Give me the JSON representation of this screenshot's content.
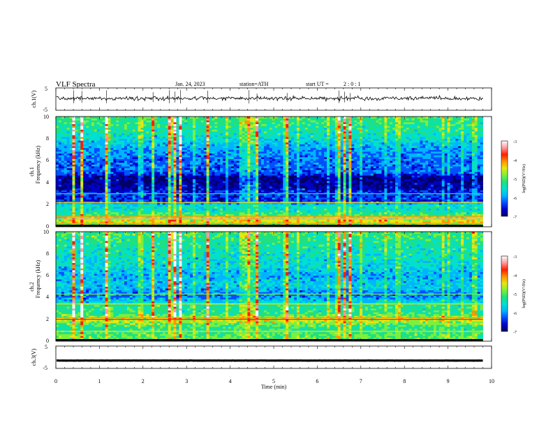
{
  "header": {
    "title": "VLF Spectra",
    "date": "Jan. 24, 2023",
    "station": "station=ATH",
    "start_ut_label": "start UT =",
    "start_ut_value": "2 : 0 : 1"
  },
  "colormap": [
    "#000066",
    "#0000c8",
    "#0050ff",
    "#00b4ff",
    "#00e0d0",
    "#20e080",
    "#7cf03c",
    "#e6e614",
    "#ff9600",
    "#ff1e00",
    "#ff9a9a",
    "#ffffff"
  ],
  "chart_data": [
    {
      "type": "line",
      "panel": "ch1-waveform",
      "ylabel": "ch.1(V)",
      "ylim": [
        -5,
        5
      ],
      "yticks": [
        "5",
        "-5"
      ],
      "xlim": [
        0,
        10
      ],
      "baseline_v": 0.3,
      "noise_amplitude_v": 1.0,
      "spike_amplitude_v": 4.0
    },
    {
      "type": "heatmap",
      "panel": "ch1-spectrogram",
      "ylabel": [
        "ch.1",
        "Frequency (kHz)"
      ],
      "ylim": [
        0,
        10
      ],
      "yticks": [
        "0",
        "2",
        "4",
        "6",
        "8",
        "10"
      ],
      "xlim": [
        0,
        9.8
      ],
      "colorbar": {
        "label": "log(PSD)(V²/Hz)",
        "range": [
          -7,
          -3
        ],
        "ticks": [
          "-3",
          "-4",
          "-5",
          "-6",
          "-7"
        ]
      },
      "frequency_profile_logpsd": [
        {
          "f": 0.0,
          "v": -5.2
        },
        {
          "f": 0.5,
          "v": -4.4
        },
        {
          "f": 1.0,
          "v": -5.0
        },
        {
          "f": 1.5,
          "v": -5.5
        },
        {
          "f": 2.0,
          "v": -5.5
        },
        {
          "f": 2.3,
          "v": -6.5
        },
        {
          "f": 3.0,
          "v": -6.4
        },
        {
          "f": 3.6,
          "v": -6.8
        },
        {
          "f": 4.5,
          "v": -6.9
        },
        {
          "f": 5.0,
          "v": -6.2
        },
        {
          "f": 6.0,
          "v": -6.2
        },
        {
          "f": 7.0,
          "v": -6.0
        },
        {
          "f": 8.0,
          "v": -5.6
        },
        {
          "f": 9.0,
          "v": -5.3
        },
        {
          "f": 10.0,
          "v": -5.1
        }
      ]
    },
    {
      "type": "heatmap",
      "panel": "ch2-spectrogram",
      "ylabel": [
        "ch.2",
        "Frequency (kHz)"
      ],
      "ylim": [
        0,
        10
      ],
      "yticks": [
        "0",
        "2",
        "4",
        "6",
        "8",
        "10"
      ],
      "xlim": [
        0,
        9.8
      ],
      "colorbar": {
        "label": "log(PSD)(V²/Hz)",
        "range": [
          -7,
          -3
        ],
        "ticks": [
          "-3",
          "-4",
          "-5",
          "-6",
          "-7"
        ]
      },
      "frequency_profile_logpsd": [
        {
          "f": 0.0,
          "v": -5.0
        },
        {
          "f": 0.6,
          "v": -5.0
        },
        {
          "f": 1.2,
          "v": -5.3
        },
        {
          "f": 2.0,
          "v": -4.5
        },
        {
          "f": 2.6,
          "v": -5.3
        },
        {
          "f": 3.2,
          "v": -5.2
        },
        {
          "f": 4.2,
          "v": -6.2
        },
        {
          "f": 5.0,
          "v": -5.7
        },
        {
          "f": 6.0,
          "v": -5.9
        },
        {
          "f": 7.0,
          "v": -5.6
        },
        {
          "f": 8.0,
          "v": -5.5
        },
        {
          "f": 9.0,
          "v": -5.3
        },
        {
          "f": 10.0,
          "v": -5.1
        }
      ]
    },
    {
      "type": "line",
      "panel": "ch3-waveform",
      "ylabel": "ch.3(V)",
      "ylim": [
        -5,
        5
      ],
      "yticks": [
        "5",
        "-5"
      ],
      "xlim": [
        0,
        10
      ],
      "baseline_v": -1.5,
      "noise_amplitude_v": 0.25
    }
  ],
  "time_axis": {
    "xlabel": "Time (min)",
    "ticks": [
      "0",
      "1",
      "2",
      "3",
      "4",
      "5",
      "6",
      "7",
      "8",
      "9",
      "10"
    ]
  }
}
